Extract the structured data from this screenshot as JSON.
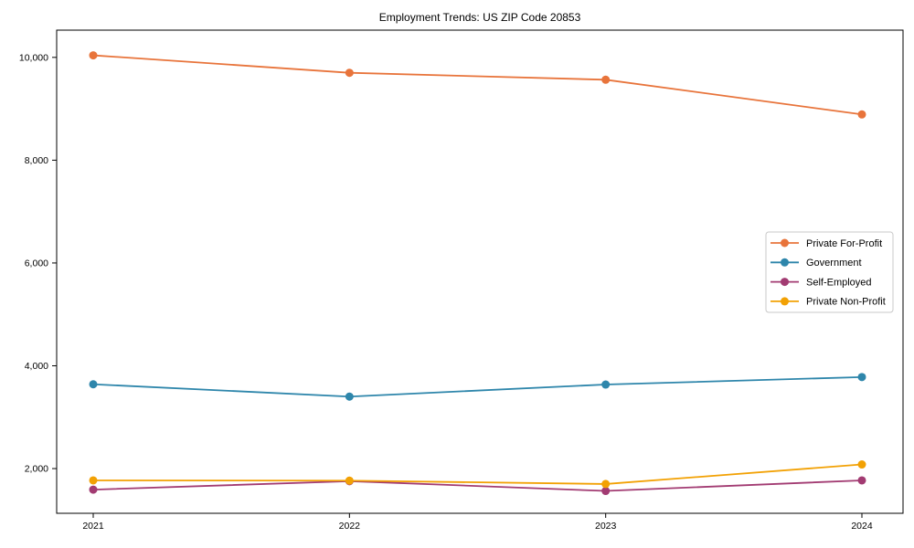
{
  "chart_data": {
    "type": "line",
    "title": "Employment Trends: US ZIP Code 20853",
    "xlabel": "",
    "ylabel": "",
    "categories": [
      "2021",
      "2022",
      "2023",
      "2024"
    ],
    "series": [
      {
        "name": "Private For-Profit",
        "color": "#E8743B",
        "values": [
          10040,
          9700,
          9565,
          8890
        ]
      },
      {
        "name": "Government",
        "color": "#2E86AB",
        "values": [
          3640,
          3400,
          3635,
          3780
        ]
      },
      {
        "name": "Self-Employed",
        "color": "#A23B72",
        "values": [
          1590,
          1755,
          1565,
          1770
        ]
      },
      {
        "name": "Private Non-Profit",
        "color": "#F2A104",
        "values": [
          1770,
          1765,
          1700,
          2080
        ]
      }
    ],
    "ylim": [
      1130,
      10530
    ],
    "yticks": [
      2000,
      4000,
      6000,
      8000,
      10000
    ],
    "ytick_labels": [
      "2,000",
      "4,000",
      "6,000",
      "8,000",
      "10,000"
    ],
    "grid": false,
    "legend_position": "center right",
    "marker": "circle",
    "frame_color": "#000000",
    "legend_border_color": "#c8c8c8",
    "background_color": "#ffffff"
  }
}
